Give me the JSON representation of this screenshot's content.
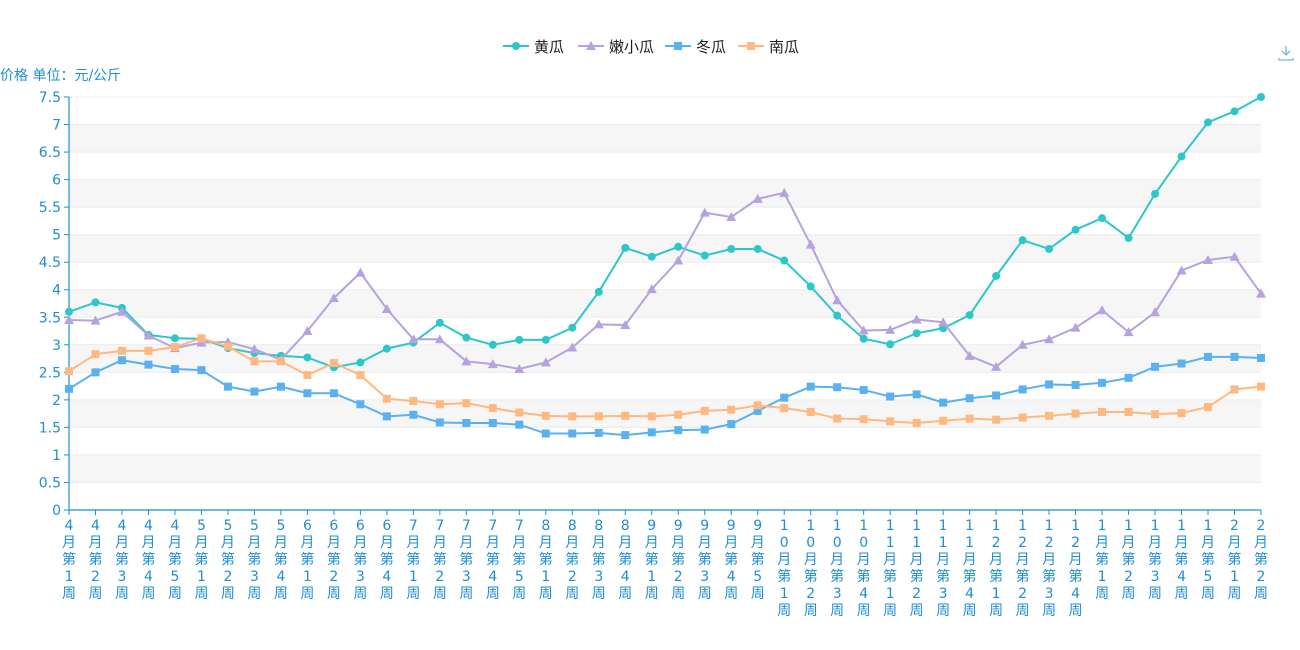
{
  "unit_label": "价格 单位：元/公斤",
  "download_icon": "download-icon",
  "chart_data": {
    "type": "line",
    "ylim": [
      0,
      7.5
    ],
    "yticks": [
      0,
      0.5,
      1,
      1.5,
      2,
      2.5,
      3,
      3.5,
      4,
      4.5,
      5,
      5.5,
      6,
      6.5,
      7,
      7.5
    ],
    "ytick_labels": [
      "0",
      "0.5",
      "1",
      "1.5",
      "2",
      "2.5",
      "3",
      "3.5",
      "4",
      "4.5",
      "5",
      "5.5",
      "6",
      "6.5",
      "7",
      "7.5"
    ],
    "grid": "banded-horizontal",
    "legend_position": "top-center",
    "categories": [
      "4月第1周",
      "4月第2周",
      "4月第3周",
      "4月第4周",
      "4月第5周",
      "5月第1周",
      "5月第2周",
      "5月第3周",
      "5月第4周",
      "6月第1周",
      "6月第2周",
      "6月第3周",
      "6月第4周",
      "7月第1周",
      "7月第2周",
      "7月第3周",
      "7月第4周",
      "7月第5周",
      "8月第1周",
      "8月第2周",
      "8月第3周",
      "8月第4周",
      "9月第1周",
      "9月第2周",
      "9月第3周",
      "9月第4周",
      "9月第5周",
      "10月第1周",
      "10月第2周",
      "10月第3周",
      "10月第4周",
      "11月第1周",
      "11月第2周",
      "11月第3周",
      "11月第4周",
      "12月第1周",
      "12月第2周",
      "12月第3周",
      "12月第4周",
      "1月第1周",
      "1月第2周",
      "1月第3周",
      "1月第4周",
      "1月第5周",
      "2月第1周",
      "2月第2周"
    ],
    "series": [
      {
        "name": "黄瓜",
        "color": "#2ec7c9",
        "marker": "circle",
        "values": [
          3.6,
          3.77,
          3.67,
          3.18,
          3.12,
          3.11,
          2.94,
          2.85,
          2.8,
          2.77,
          2.59,
          2.68,
          2.93,
          3.04,
          3.4,
          3.13,
          3.0,
          3.09,
          3.09,
          3.31,
          3.96,
          4.76,
          4.6,
          4.78,
          4.62,
          4.74,
          4.74,
          4.53,
          4.06,
          3.53,
          3.11,
          3.01,
          3.21,
          3.3,
          3.54,
          4.25,
          4.9,
          4.74,
          5.09,
          5.3,
          4.94,
          5.74,
          6.42,
          7.04,
          7.24,
          7.5
        ]
      },
      {
        "name": "嫩小瓜",
        "color": "#b6a2de",
        "marker": "triangle",
        "values": [
          3.45,
          3.44,
          3.6,
          3.17,
          2.94,
          3.04,
          3.05,
          2.92,
          2.73,
          3.25,
          3.85,
          4.31,
          3.65,
          3.1,
          3.1,
          2.7,
          2.65,
          2.56,
          2.68,
          2.95,
          3.37,
          3.36,
          4.01,
          4.53,
          5.4,
          5.32,
          5.65,
          5.76,
          4.82,
          3.81,
          3.26,
          3.27,
          3.46,
          3.41,
          2.8,
          2.6,
          3.0,
          3.1,
          3.31,
          3.63,
          3.23,
          3.59,
          4.35,
          4.54,
          4.6,
          3.93
        ]
      },
      {
        "name": "冬瓜",
        "color": "#5ab1ef",
        "marker": "square",
        "values": [
          2.2,
          2.5,
          2.72,
          2.64,
          2.56,
          2.54,
          2.24,
          2.15,
          2.24,
          2.12,
          2.12,
          1.92,
          1.7,
          1.73,
          1.59,
          1.58,
          1.58,
          1.55,
          1.39,
          1.39,
          1.4,
          1.36,
          1.41,
          1.45,
          1.46,
          1.56,
          1.8,
          2.04,
          2.24,
          2.23,
          2.18,
          2.06,
          2.1,
          1.95,
          2.03,
          2.08,
          2.19,
          2.28,
          2.27,
          2.31,
          2.4,
          2.6,
          2.66,
          2.78,
          2.78,
          2.76
        ]
      },
      {
        "name": "南瓜",
        "color": "#ffb980",
        "marker": "square",
        "values": [
          2.52,
          2.83,
          2.89,
          2.89,
          2.96,
          3.12,
          2.97,
          2.7,
          2.7,
          2.45,
          2.67,
          2.45,
          2.02,
          1.98,
          1.92,
          1.94,
          1.85,
          1.77,
          1.71,
          1.7,
          1.7,
          1.71,
          1.7,
          1.73,
          1.8,
          1.82,
          1.9,
          1.85,
          1.78,
          1.66,
          1.65,
          1.61,
          1.58,
          1.62,
          1.66,
          1.64,
          1.68,
          1.71,
          1.75,
          1.78,
          1.78,
          1.74,
          1.76,
          1.87,
          2.19,
          2.24
        ]
      }
    ]
  }
}
